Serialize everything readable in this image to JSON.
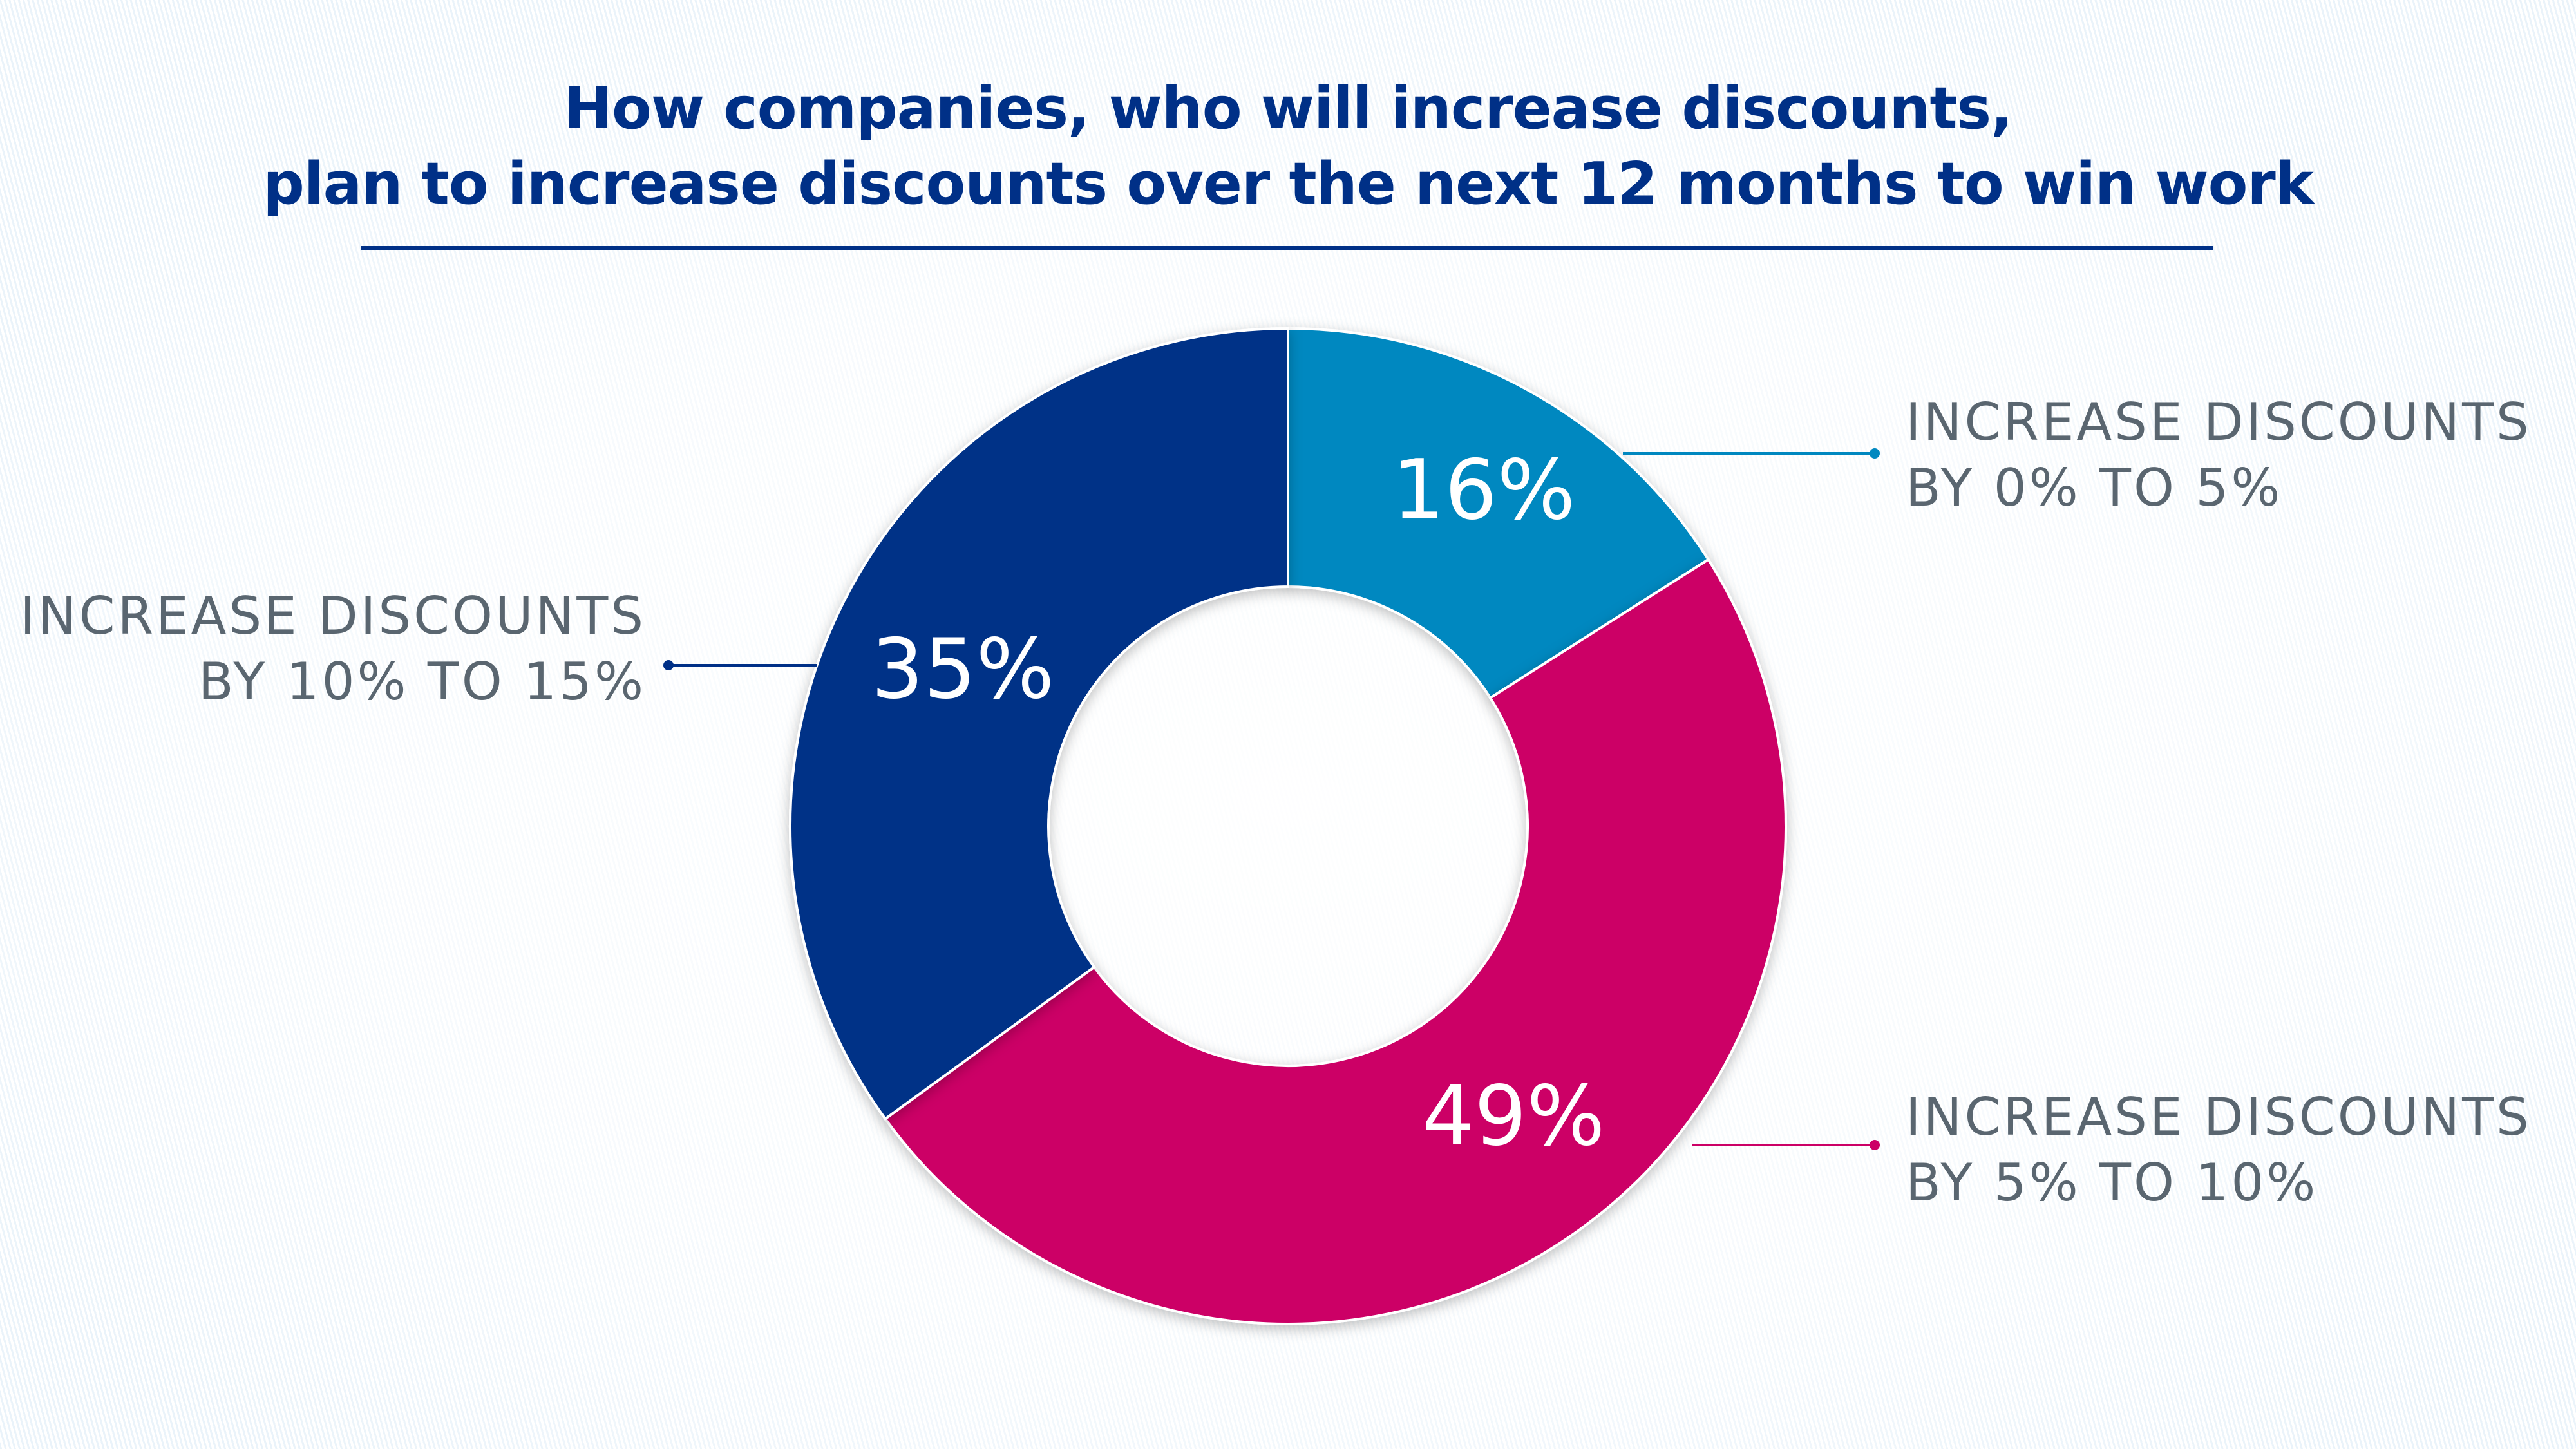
{
  "chart_data": {
    "type": "pie",
    "variant": "donut",
    "title_lines": [
      "How companies, who will increase discounts,",
      "plan to increase discounts over the next 12 months to win work"
    ],
    "slices": [
      {
        "label_lines": [
          "INCREASE DISCOUNTS",
          "BY 0% TO 5%"
        ],
        "value": 16,
        "display": "16%",
        "color": "#0088c0"
      },
      {
        "label_lines": [
          "INCREASE DISCOUNTS",
          "BY 5% TO 10%"
        ],
        "value": 49,
        "display": "49%",
        "color": "#cc0066"
      },
      {
        "label_lines": [
          "INCREASE DISCOUNTS",
          "BY 10% TO 15%"
        ],
        "value": 35,
        "display": "35%",
        "color": "#003087"
      }
    ],
    "legend": "callout labels"
  },
  "colors": {
    "title": "#003087",
    "label_text": "#5a6670"
  }
}
